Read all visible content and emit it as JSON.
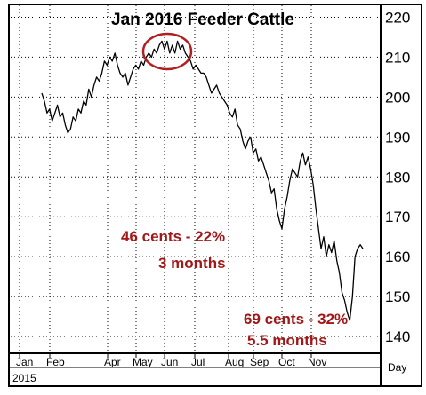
{
  "chart_data": {
    "type": "line",
    "title": "Jan 2016 Feeder Cattle",
    "x_tick_labels": [
      "Jan",
      "Feb",
      "Apr",
      "May",
      "Jun",
      "Jul",
      "Aug",
      "Sep",
      "Oct",
      "Nov"
    ],
    "year_label": "2015",
    "period_label": "Day",
    "ylim": [
      136,
      223
    ],
    "y_ticks": [
      140,
      150,
      160,
      170,
      180,
      190,
      200,
      210,
      220
    ],
    "grid": true,
    "series": [
      {
        "values": [
          201,
          199,
          196,
          197,
          194,
          196,
          198,
          195,
          196,
          193,
          191,
          192,
          195,
          194,
          197,
          196,
          199,
          198,
          202,
          200,
          203,
          205,
          204,
          206,
          209,
          208,
          210,
          209,
          211,
          208,
          206,
          205,
          206,
          203,
          205,
          207,
          208,
          207,
          209,
          208,
          210,
          211,
          210,
          212,
          211,
          213,
          214,
          212,
          214,
          211,
          213,
          211,
          214,
          212,
          213,
          211,
          210,
          209,
          207,
          208,
          207,
          206,
          206,
          205,
          203,
          201,
          202,
          203,
          201,
          200,
          199,
          198,
          196,
          195,
          197,
          193,
          192,
          189,
          187,
          189,
          190,
          186,
          187,
          184,
          185,
          183,
          181,
          179,
          176,
          177,
          172,
          169,
          167,
          172,
          175,
          179,
          182,
          181,
          180,
          184,
          186,
          183,
          185,
          182,
          178,
          172,
          167,
          162,
          165,
          160,
          163,
          161,
          164,
          159,
          156,
          151,
          149,
          146,
          144,
          150,
          160,
          162,
          163,
          162
        ]
      }
    ],
    "highlight_circle": "peak near 213-214 in May-Jun",
    "annotations": [
      {
        "label": "46 cents - 22%"
      },
      {
        "label": "3 months"
      },
      {
        "label": "69 cents - 32%"
      },
      {
        "label": "5.5 months"
      }
    ],
    "colors": {
      "line": "#000000",
      "annotation": "#a01818",
      "circle": "#b02020",
      "grid": "#000000"
    }
  }
}
